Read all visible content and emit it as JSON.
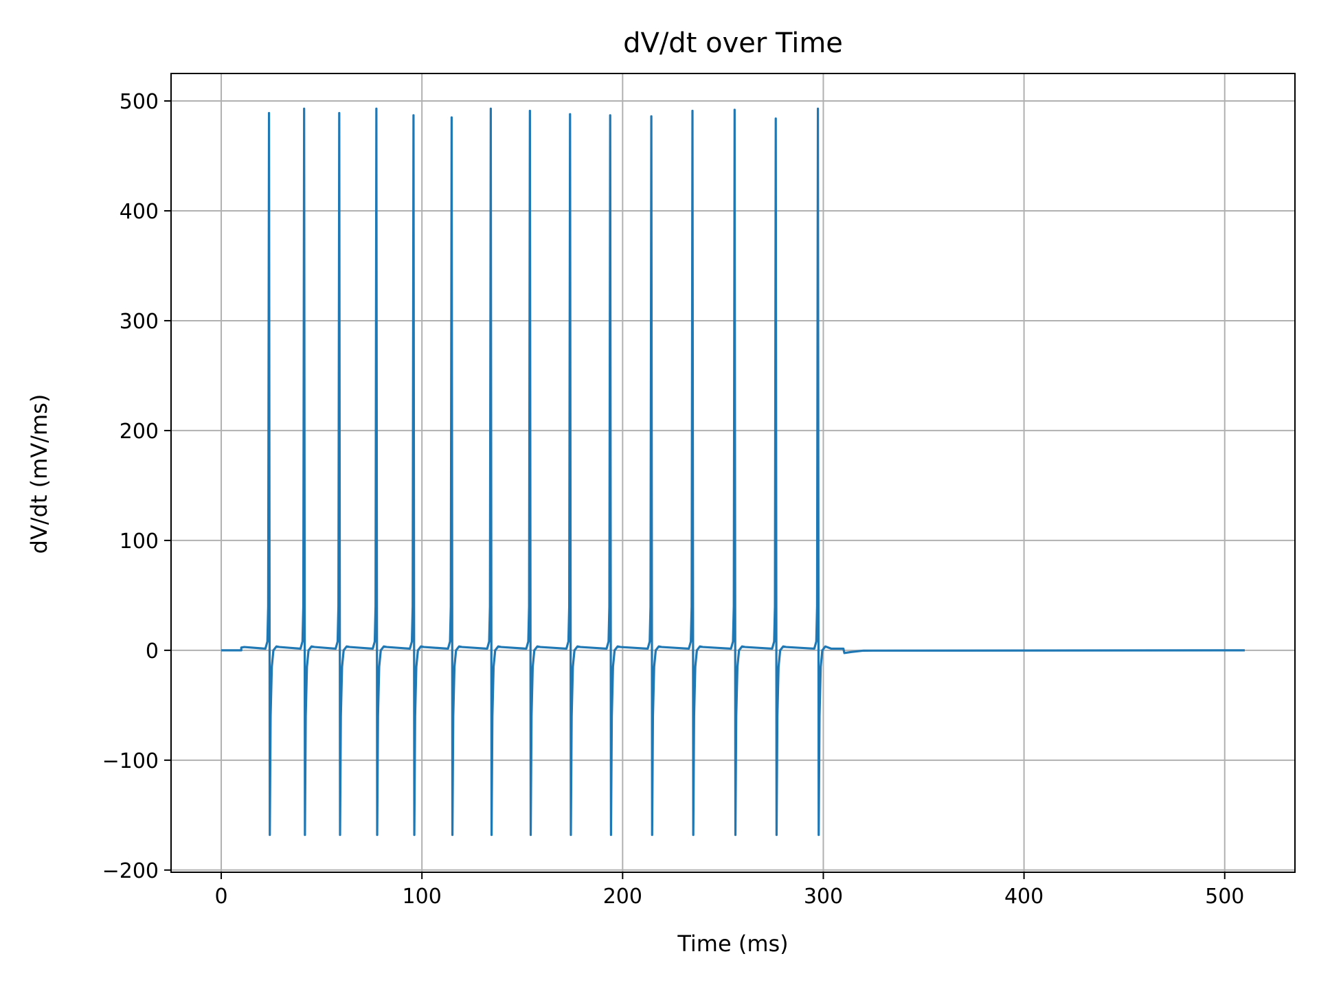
{
  "chart_data": {
    "type": "line",
    "title": "dV/dt over Time",
    "xlabel": "Time (ms)",
    "ylabel": "dV/dt (mV/ms)",
    "xlim": [
      -25,
      535
    ],
    "ylim": [
      -202,
      525
    ],
    "x_ticks": [
      0,
      100,
      200,
      300,
      400,
      500
    ],
    "x_tick_labels": [
      "0",
      "100",
      "200",
      "300",
      "400",
      "500"
    ],
    "y_ticks": [
      -200,
      -100,
      0,
      100,
      200,
      300,
      400,
      500
    ],
    "y_tick_labels": [
      "−200",
      "−100",
      "0",
      "100",
      "200",
      "300",
      "400",
      "500"
    ],
    "grid": true,
    "series_color": "#1f77b4",
    "grid_color": "#b0b0b0",
    "stimulus_on": 10,
    "stimulus_off": 310,
    "end_time": 510,
    "baseline_during_stimulus": 1.5,
    "spikes": [
      {
        "t": 24,
        "peak": 489,
        "trough": -168
      },
      {
        "t": 41.5,
        "peak": 493,
        "trough": -168
      },
      {
        "t": 59,
        "peak": 489,
        "trough": -168
      },
      {
        "t": 77.5,
        "peak": 493,
        "trough": -168
      },
      {
        "t": 96,
        "peak": 487,
        "trough": -168
      },
      {
        "t": 115,
        "peak": 485,
        "trough": -168
      },
      {
        "t": 134.5,
        "peak": 493,
        "trough": -168
      },
      {
        "t": 154,
        "peak": 491,
        "trough": -168
      },
      {
        "t": 174,
        "peak": 488,
        "trough": -168
      },
      {
        "t": 194,
        "peak": 487,
        "trough": -168
      },
      {
        "t": 214.5,
        "peak": 486,
        "trough": -168
      },
      {
        "t": 235,
        "peak": 491,
        "trough": -168
      },
      {
        "t": 256,
        "peak": 492,
        "trough": -168
      },
      {
        "t": 276.5,
        "peak": 484,
        "trough": -168
      },
      {
        "t": 297.5,
        "peak": 493,
        "trough": -168
      }
    ]
  }
}
